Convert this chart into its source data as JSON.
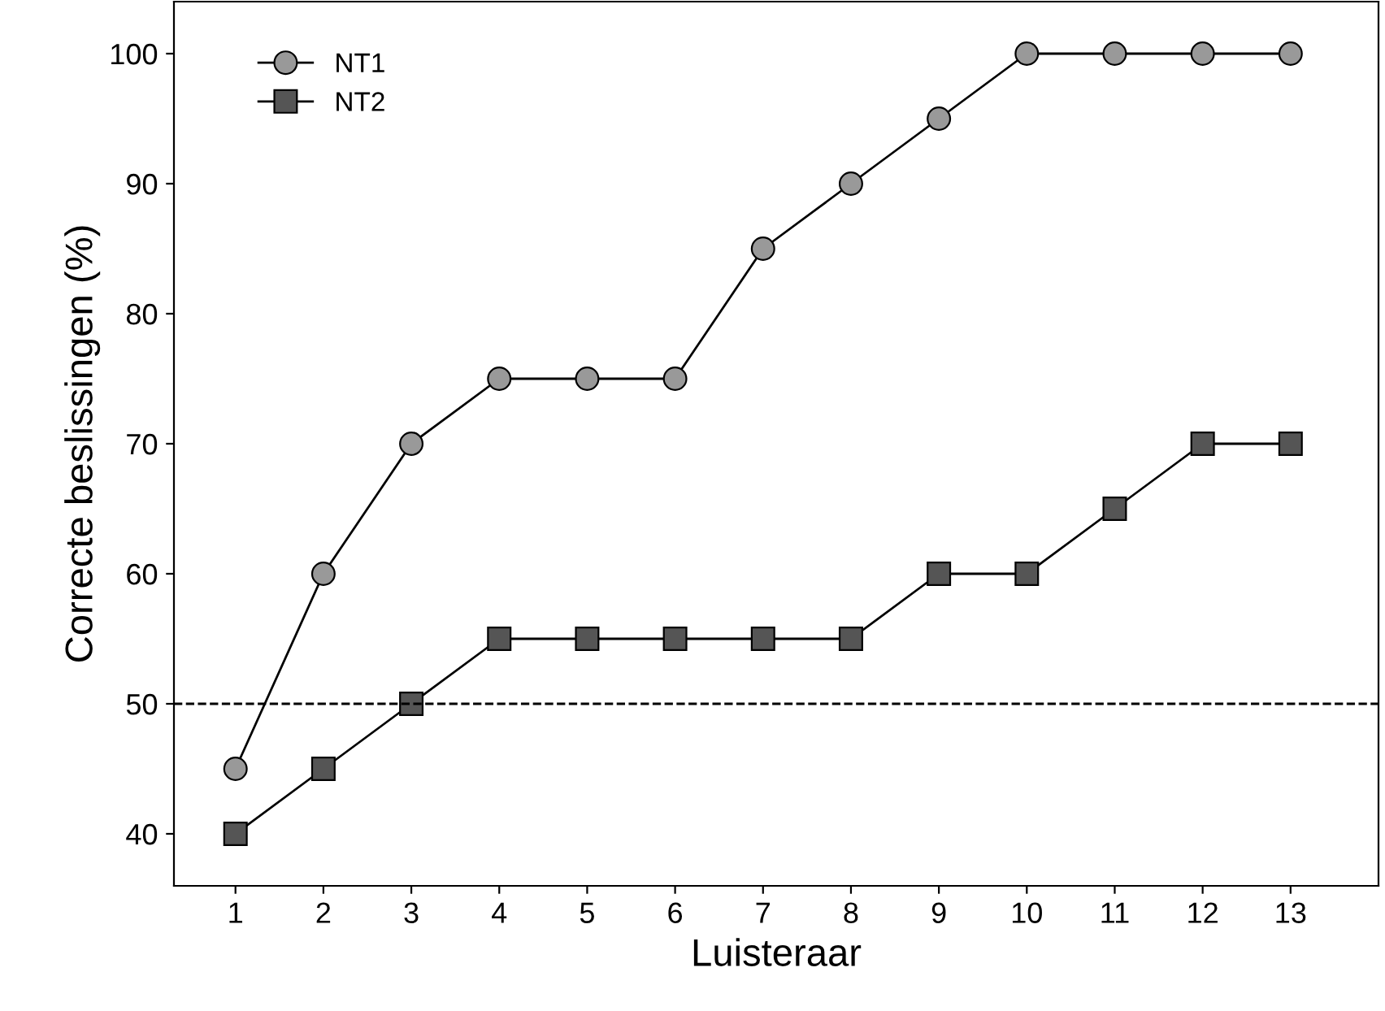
{
  "chart_data": {
    "type": "line",
    "xlabel": "Luisteraar",
    "ylabel": "Correcte beslissingen (%)",
    "x": [
      1,
      2,
      3,
      4,
      5,
      6,
      7,
      8,
      9,
      10,
      11,
      12,
      13
    ],
    "series": [
      {
        "name": "NT1",
        "color": "#999999",
        "marker": "circle",
        "values": [
          45,
          60,
          70,
          75,
          75,
          75,
          85,
          90,
          95,
          100,
          100,
          100,
          100
        ]
      },
      {
        "name": "NT2",
        "color": "#555555",
        "marker": "square",
        "values": [
          40,
          45,
          50,
          55,
          55,
          55,
          55,
          55,
          60,
          60,
          65,
          70,
          70
        ]
      }
    ],
    "xlim": [
      0.3,
      14
    ],
    "xticks": [
      1,
      2,
      3,
      4,
      5,
      6,
      7,
      8,
      9,
      10,
      11,
      12,
      13
    ],
    "ylim": [
      36,
      104
    ],
    "yticks": [
      40,
      50,
      60,
      70,
      80,
      90,
      100
    ],
    "ref_lines": [
      {
        "axis": "y",
        "value": 50,
        "line_style": "dashed"
      }
    ],
    "grid": false,
    "legend": "top left",
    "line_style": "solid"
  }
}
